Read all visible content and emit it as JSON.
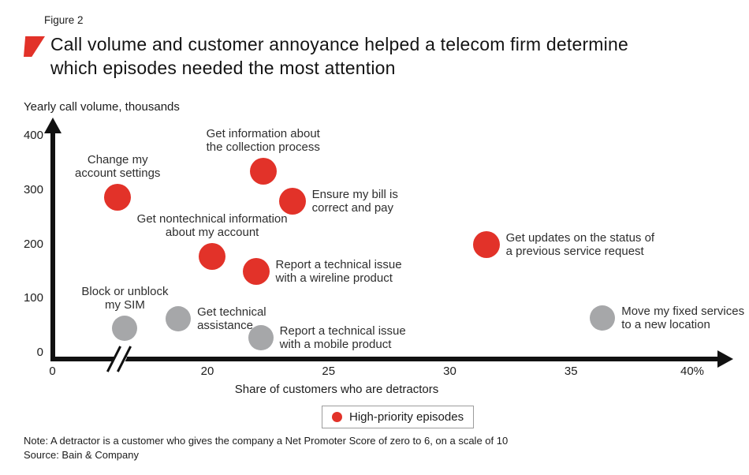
{
  "page": {
    "figure_label": "Figure 2",
    "title": [
      "Call volume and customer annoyance helped a telecom firm determine",
      "which episodes needed the most attention"
    ],
    "note": "Note: A detractor is a customer who gives the company a Net Promoter Score of zero to 6, on a scale of 10",
    "source": "Source: Bain & Company"
  },
  "colors": {
    "high_priority": "#e23229",
    "normal": "#a6a7a9",
    "axis": "#111111"
  },
  "legend": {
    "label": "High-priority episodes"
  },
  "chart_data": {
    "type": "scatter",
    "title": "Call volume and customer annoyance helped a telecom firm determine which episodes needed the most attention",
    "xlabel": "Share of customers who are detractors",
    "ylabel": "Yearly call volume, thousands",
    "x_unit": "percent",
    "axis_break": "x axis is broken between 0 and 20",
    "x_ticks": [
      {
        "label": "0",
        "v": null
      },
      {
        "label": "20",
        "v": 20
      },
      {
        "label": "25",
        "v": 25
      },
      {
        "label": "30",
        "v": 30
      },
      {
        "label": "35",
        "v": 35
      },
      {
        "label": "40%",
        "v": 40
      }
    ],
    "y_ticks": [
      0,
      100,
      200,
      300,
      400
    ],
    "ylim": [
      0,
      400
    ],
    "grid": false,
    "legend_position": "bottom-center",
    "points": [
      {
        "label_lines": [
          "Change my",
          "account settings"
        ],
        "x": 16.3,
        "y": 287,
        "priority": "high",
        "label_pos": "above",
        "x_note": "plotted left of axis break"
      },
      {
        "label_lines": [
          "Get information about",
          "the collection process"
        ],
        "x": 22.3,
        "y": 335,
        "priority": "high",
        "label_pos": "above"
      },
      {
        "label_lines": [
          "Ensure my bill is",
          "correct and pay"
        ],
        "x": 23.5,
        "y": 279,
        "priority": "high",
        "label_pos": "right"
      },
      {
        "label_lines": [
          "Get nontechnical information",
          "about my account"
        ],
        "x": 20.2,
        "y": 178,
        "priority": "high",
        "label_pos": "above"
      },
      {
        "label_lines": [
          "Report a technical issue",
          "with a wireline product"
        ],
        "x": 22.0,
        "y": 150,
        "priority": "high",
        "label_pos": "right"
      },
      {
        "label_lines": [
          "Get updates on the status of",
          "a previous service request"
        ],
        "x": 31.5,
        "y": 200,
        "priority": "high",
        "label_pos": "right"
      },
      {
        "label_lines": [
          "Block or unblock",
          "my SIM"
        ],
        "x": 16.6,
        "y": 45,
        "priority": "normal",
        "label_pos": "above",
        "x_note": "plotted left of axis break"
      },
      {
        "label_lines": [
          "Get technical",
          "assistance"
        ],
        "x": 18.8,
        "y": 63,
        "priority": "normal",
        "label_pos": "right"
      },
      {
        "label_lines": [
          "Report a technical issue",
          "with a mobile product"
        ],
        "x": 22.2,
        "y": 28,
        "priority": "normal",
        "label_pos": "right"
      },
      {
        "label_lines": [
          "Move my fixed services",
          "to a new location"
        ],
        "x": 36.3,
        "y": 64,
        "priority": "normal",
        "label_pos": "right"
      }
    ]
  }
}
